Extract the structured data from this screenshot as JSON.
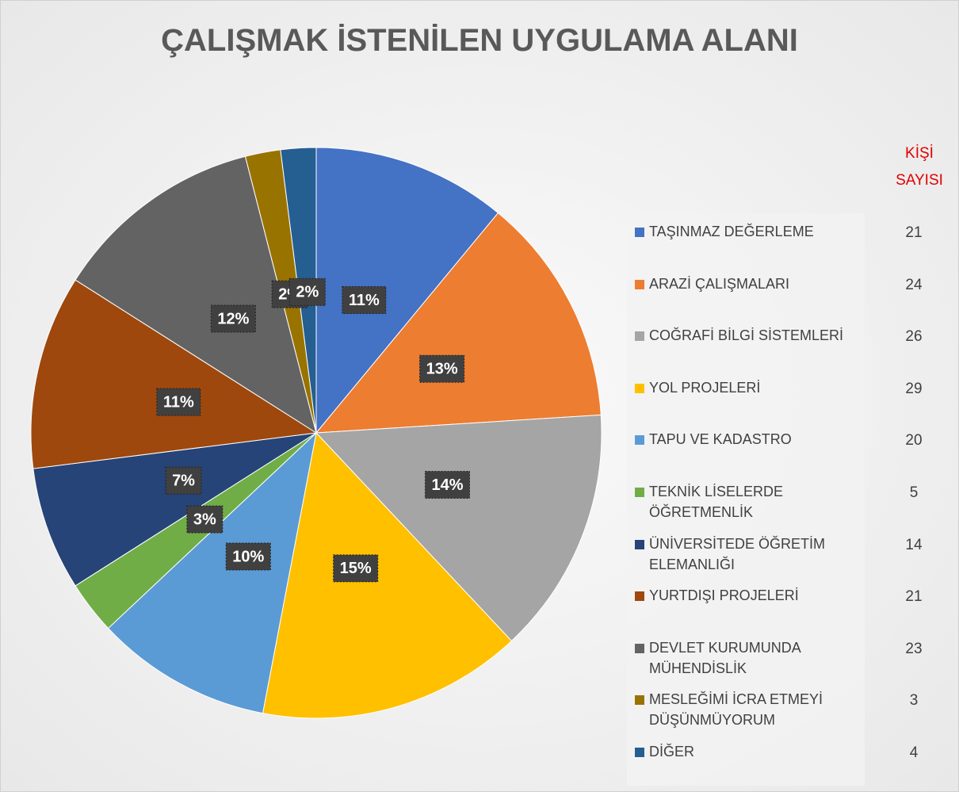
{
  "chart_data": {
    "type": "pie",
    "title": "ÇALIŞMAK İSTENİLEN UYGULAMA ALANI",
    "categories": [
      "TAŞINMAZ DEĞERLEME",
      "ARAZİ ÇALIŞMALARI",
      "COĞRAFİ BİLGİ SİSTEMLERİ",
      "YOL PROJELERİ",
      "TAPU VE KADASTRO",
      "TEKNİK LİSELERDE ÖĞRETMENLİK",
      "ÜNİVERSİTEDE ÖĞRETİM ELEMANLIĞI",
      "YURTDIŞI PROJELERİ",
      "DEVLET KURUMUNDA MÜHENDİSLİK",
      "MESLEĞİMİ İCRA ETMEYİ DÜŞÜNMÜYORUM",
      "DİĞER"
    ],
    "values": [
      11,
      13,
      14,
      15,
      10,
      3,
      7,
      11,
      12,
      2,
      2
    ],
    "value_labels": [
      "11%",
      "13%",
      "14%",
      "15%",
      "10%",
      "3%",
      "7%",
      "11%",
      "12%",
      "2%",
      "2%"
    ],
    "colors": [
      "#4472c4",
      "#ed7d31",
      "#a5a5a5",
      "#ffc000",
      "#5b9bd5",
      "#70ad47",
      "#264478",
      "#9e480e",
      "#636363",
      "#997300",
      "#255e91"
    ],
    "count_header": "KİŞİ SAYISI",
    "counts": [
      21,
      24,
      26,
      29,
      20,
      5,
      14,
      21,
      23,
      3,
      4
    ]
  }
}
